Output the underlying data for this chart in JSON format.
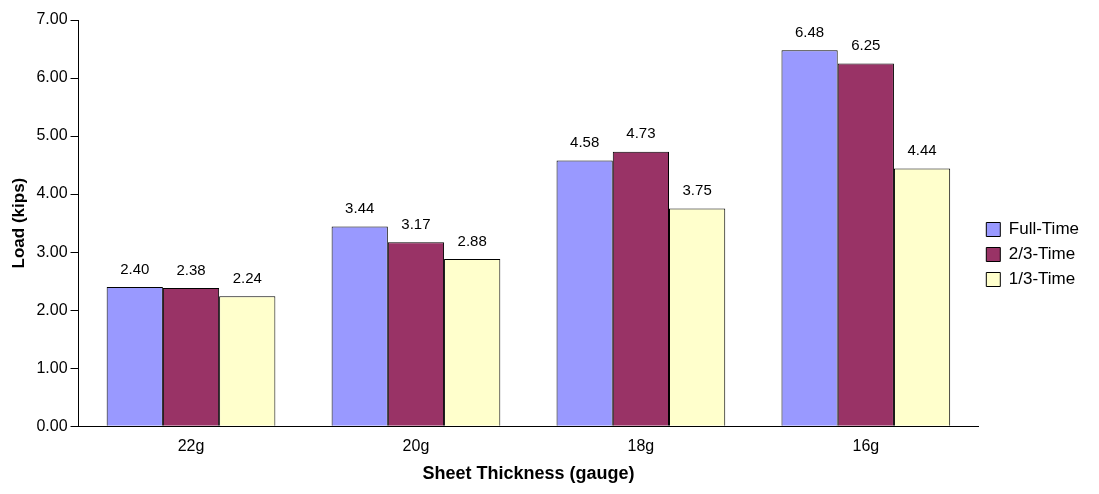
{
  "chart_data": {
    "type": "bar",
    "xlabel": "Sheet Thickness (gauge)",
    "ylabel": "Load (kips)",
    "categories": [
      "22g",
      "20g",
      "18g",
      "16g"
    ],
    "series": [
      {
        "name": "Full-Time",
        "color": "#9999ff",
        "values": [
          2.4,
          3.44,
          4.58,
          6.48
        ],
        "value_labels": [
          "2.40",
          "3.44",
          "4.58",
          "6.48"
        ]
      },
      {
        "name": "2/3-Time",
        "color": "#993366",
        "values": [
          2.38,
          3.17,
          4.73,
          6.25
        ],
        "value_labels": [
          "2.38",
          "3.17",
          "4.73",
          "6.25"
        ]
      },
      {
        "name": "1/3-Time",
        "color": "#ffffcc",
        "values": [
          2.24,
          2.88,
          3.75,
          4.44
        ],
        "value_labels": [
          "2.24",
          "2.88",
          "3.75",
          "4.44"
        ]
      }
    ],
    "ylim": [
      0,
      7
    ],
    "yticks": [
      {
        "value": 0,
        "label": "0.00"
      },
      {
        "value": 1,
        "label": "1.00"
      },
      {
        "value": 2,
        "label": "2.00"
      },
      {
        "value": 3,
        "label": "3.00"
      },
      {
        "value": 4,
        "label": "4.00"
      },
      {
        "value": 5,
        "label": "5.00"
      },
      {
        "value": 6,
        "label": "6.00"
      },
      {
        "value": 7,
        "label": "7.00"
      }
    ],
    "grid": false,
    "legend": "right"
  }
}
